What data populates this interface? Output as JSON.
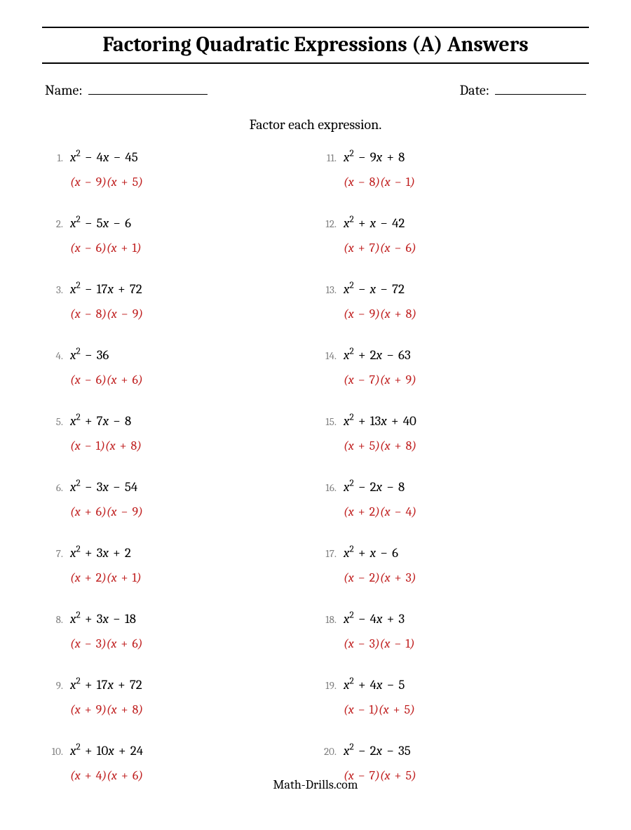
{
  "title": "Factoring Quadratic Expressions (A) Answers",
  "name_label": "Name:",
  "date_label": "Date:",
  "instruction": "Factor each expression.",
  "footer": "Math-Drills.com",
  "answer_color": "#c02020",
  "name_underline_width": 170,
  "date_underline_width": 130,
  "problems": [
    {
      "n": 1,
      "b": -4,
      "c": -45,
      "r1": -9,
      "r2": 5
    },
    {
      "n": 2,
      "b": -5,
      "c": -6,
      "r1": -6,
      "r2": 1
    },
    {
      "n": 3,
      "b": -17,
      "c": 72,
      "r1": -8,
      "r2": -9
    },
    {
      "n": 4,
      "b": 0,
      "c": -36,
      "r1": -6,
      "r2": 6
    },
    {
      "n": 5,
      "b": 7,
      "c": -8,
      "r1": -1,
      "r2": 8
    },
    {
      "n": 6,
      "b": -3,
      "c": -54,
      "r1": 6,
      "r2": -9
    },
    {
      "n": 7,
      "b": 3,
      "c": 2,
      "r1": 2,
      "r2": 1
    },
    {
      "n": 8,
      "b": 3,
      "c": -18,
      "r1": -3,
      "r2": 6
    },
    {
      "n": 9,
      "b": 17,
      "c": 72,
      "r1": 9,
      "r2": 8
    },
    {
      "n": 10,
      "b": 10,
      "c": 24,
      "r1": 4,
      "r2": 6
    },
    {
      "n": 11,
      "b": -9,
      "c": 8,
      "r1": -8,
      "r2": -1
    },
    {
      "n": 12,
      "b": 1,
      "c": -42,
      "r1": 7,
      "r2": -6
    },
    {
      "n": 13,
      "b": -1,
      "c": -72,
      "r1": -9,
      "r2": 8
    },
    {
      "n": 14,
      "b": 2,
      "c": -63,
      "r1": -7,
      "r2": 9
    },
    {
      "n": 15,
      "b": 13,
      "c": 40,
      "r1": 5,
      "r2": 8
    },
    {
      "n": 16,
      "b": -2,
      "c": -8,
      "r1": 2,
      "r2": -4
    },
    {
      "n": 17,
      "b": 1,
      "c": -6,
      "r1": -2,
      "r2": 3
    },
    {
      "n": 18,
      "b": -4,
      "c": 3,
      "r1": -3,
      "r2": -1
    },
    {
      "n": 19,
      "b": 4,
      "c": -5,
      "r1": -1,
      "r2": 5
    },
    {
      "n": 20,
      "b": -2,
      "c": -35,
      "r1": -7,
      "r2": 5
    }
  ]
}
